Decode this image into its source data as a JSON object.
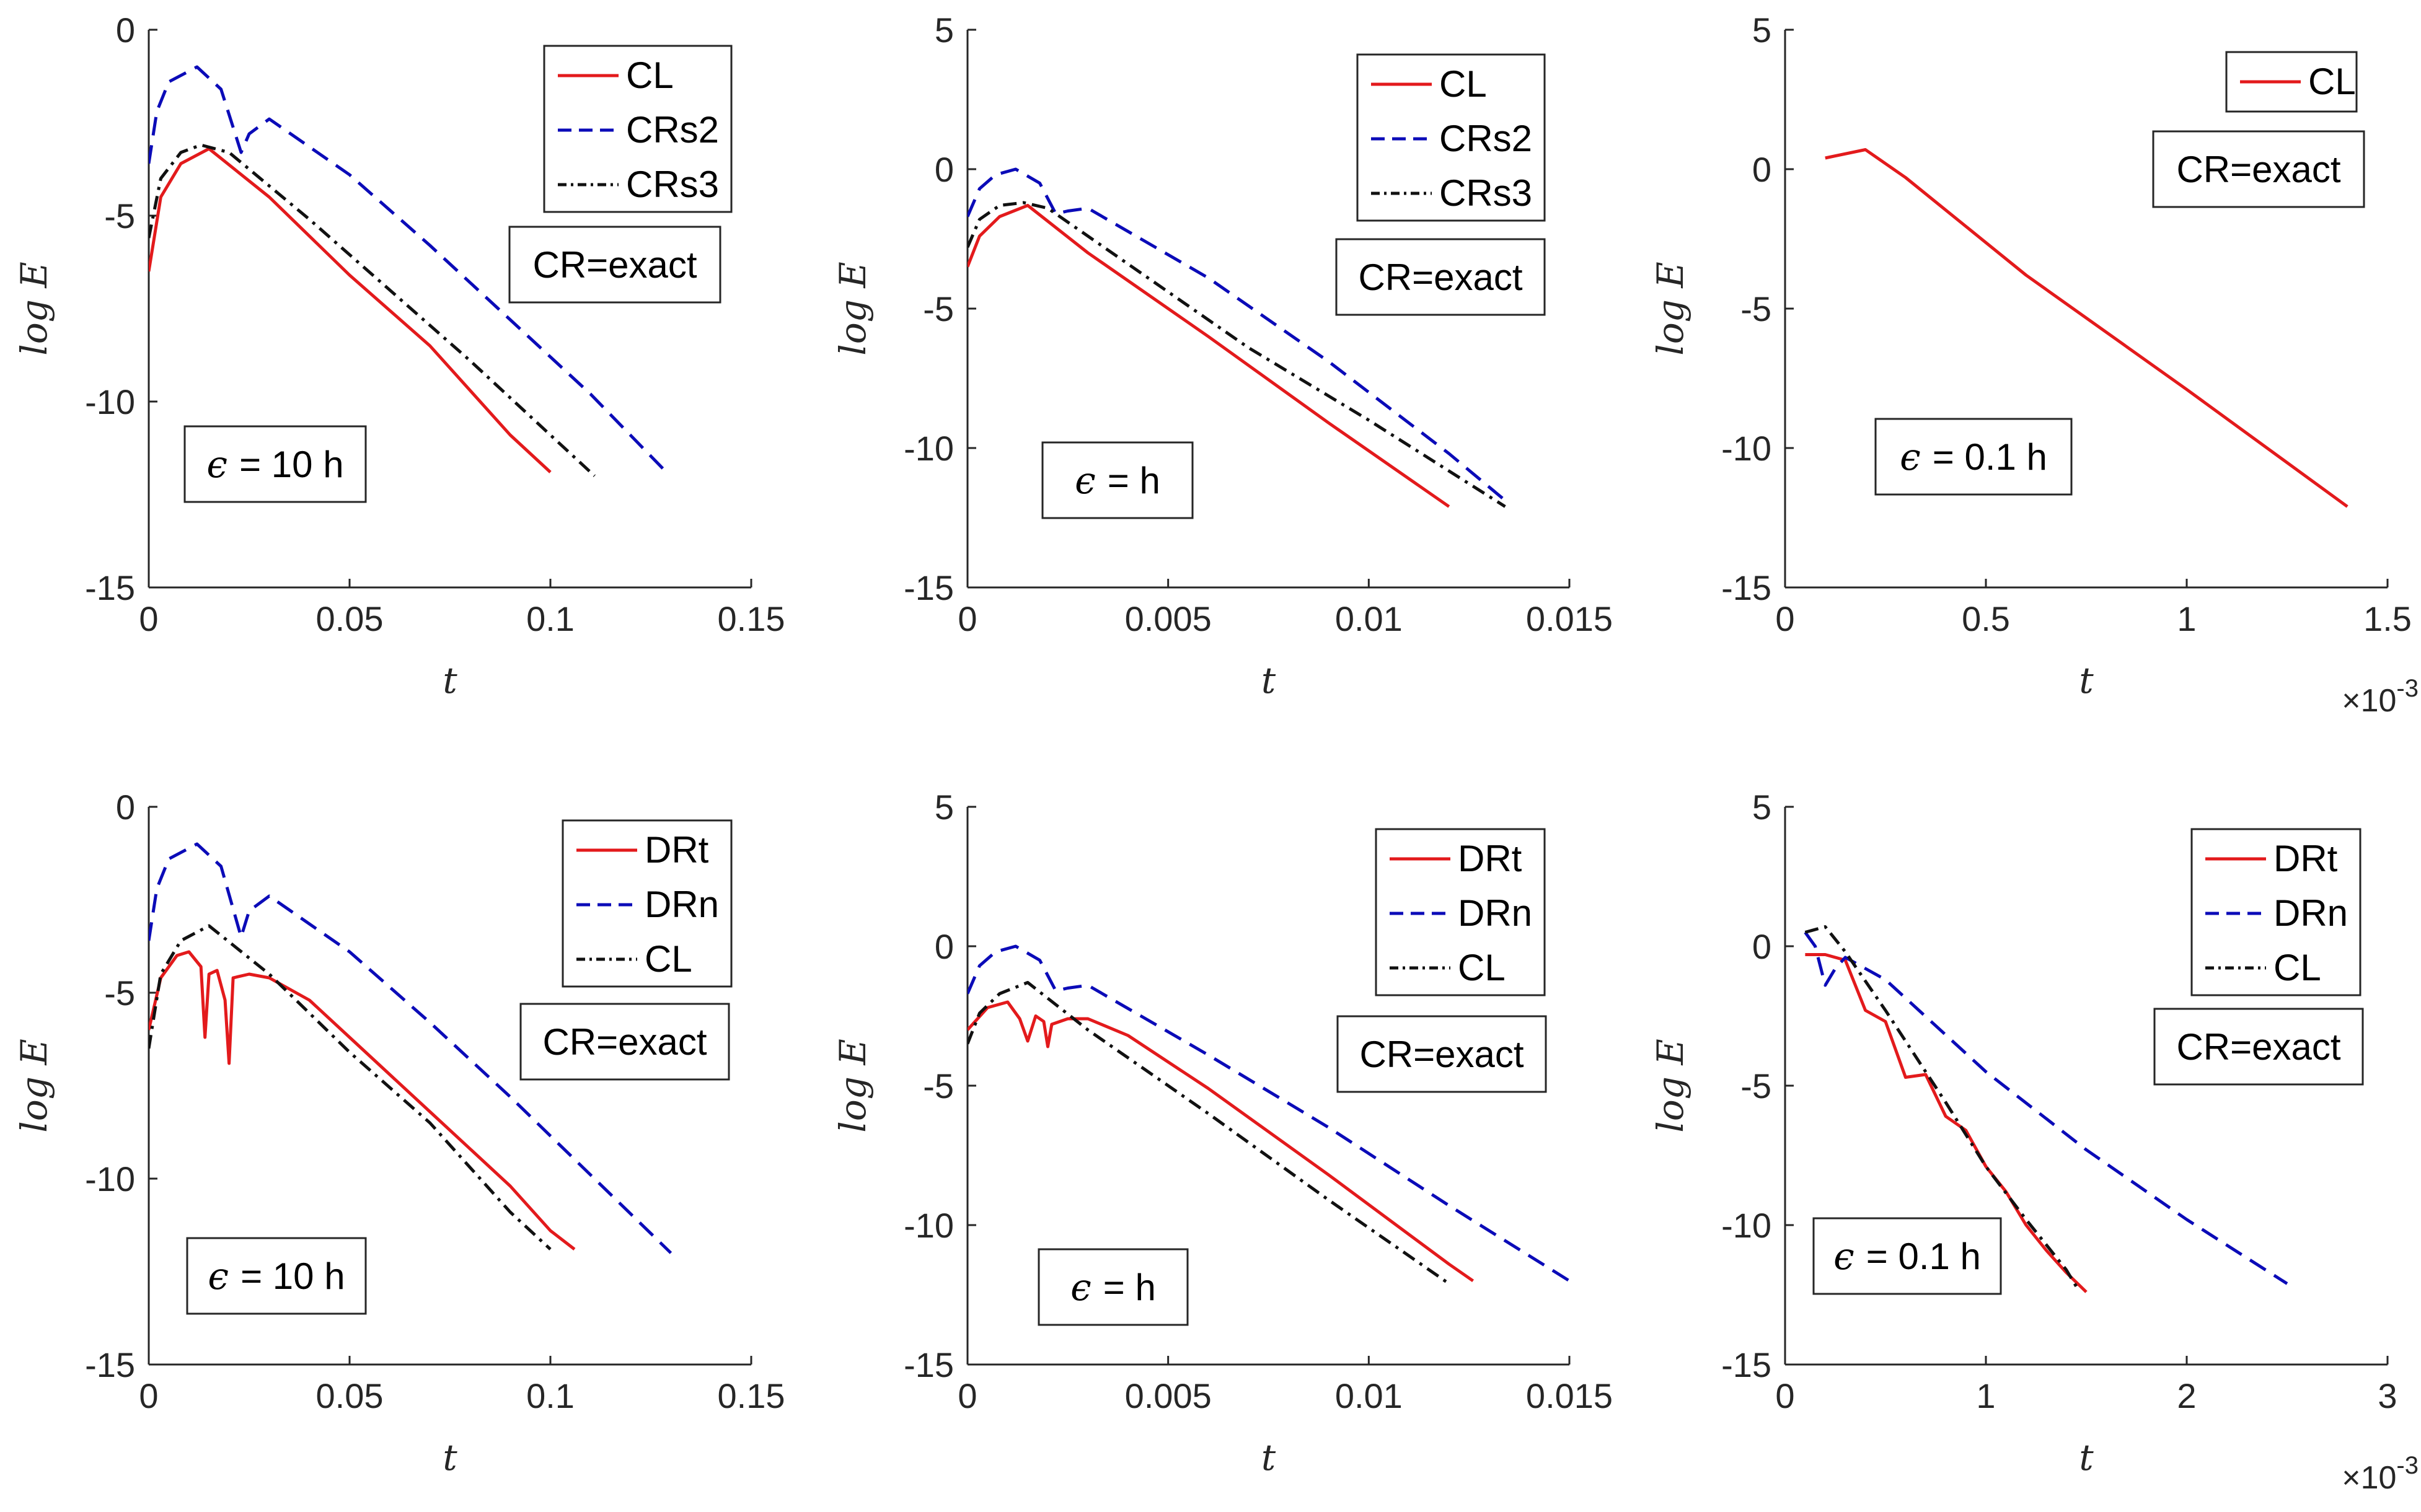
{
  "chart_data": [
    {
      "type": "line",
      "id": "p11",
      "xlim": [
        0,
        0.15
      ],
      "ylim": [
        -15,
        0
      ],
      "xticks": [
        "0",
        "0.05",
        "0.1",
        "0.15"
      ],
      "yticks": [
        "0",
        "-5",
        "-10",
        "-15"
      ],
      "xlabel": "t",
      "ylabel": "log E",
      "exponent": "",
      "legend": [
        "CL",
        "CRs2",
        "CRs3"
      ],
      "legend_position": "top-right",
      "note": "CR=exact",
      "eps_label": "= 10 h",
      "series": [
        {
          "name": "CL",
          "color": "#e31a1c",
          "style": "solid",
          "x": [
            0,
            0.003,
            0.008,
            0.015,
            0.03,
            0.05,
            0.07,
            0.09,
            0.1
          ],
          "y": [
            -6.5,
            -4.5,
            -3.6,
            -3.2,
            -4.5,
            -6.6,
            -8.5,
            -10.9,
            -11.9
          ]
        },
        {
          "name": "CRs2",
          "color": "#0b0bb8",
          "style": "dashed",
          "x": [
            0,
            0.002,
            0.005,
            0.012,
            0.018,
            0.023,
            0.025,
            0.03,
            0.05,
            0.07,
            0.09,
            0.11,
            0.128
          ],
          "y": [
            -3.6,
            -2.2,
            -1.4,
            -1.0,
            -1.6,
            -3.3,
            -2.8,
            -2.4,
            -3.9,
            -5.8,
            -7.8,
            -9.8,
            -11.8
          ]
        },
        {
          "name": "CRs3",
          "color": "#111111",
          "style": "dashdot",
          "x": [
            0,
            0.003,
            0.008,
            0.013,
            0.02,
            0.04,
            0.06,
            0.08,
            0.1,
            0.111
          ],
          "y": [
            -5.6,
            -4.0,
            -3.3,
            -3.1,
            -3.3,
            -5.1,
            -7.0,
            -8.9,
            -10.9,
            -12.0
          ]
        }
      ]
    },
    {
      "type": "line",
      "id": "p12",
      "xlim": [
        0,
        0.015
      ],
      "ylim": [
        -15,
        5
      ],
      "xticks": [
        "0",
        "0.005",
        "0.01",
        "0.015"
      ],
      "yticks": [
        "5",
        "0",
        "-5",
        "-10",
        "-15"
      ],
      "xlabel": "t",
      "ylabel": "log E",
      "exponent": "",
      "legend": [
        "CL",
        "CRs2",
        "CRs3"
      ],
      "legend_position": "top-right",
      "note": "CR=exact",
      "eps_label": "= h",
      "series": [
        {
          "name": "CL",
          "color": "#e31a1c",
          "style": "solid",
          "x": [
            0,
            0.0003,
            0.0008,
            0.0015,
            0.003,
            0.006,
            0.009,
            0.012
          ],
          "y": [
            -3.5,
            -2.4,
            -1.7,
            -1.3,
            -3.0,
            -6.0,
            -9.1,
            -12.1
          ]
        },
        {
          "name": "CRs2",
          "color": "#0b0bb8",
          "style": "dashed",
          "x": [
            0,
            0.0003,
            0.0007,
            0.0012,
            0.0018,
            0.0022,
            0.0025,
            0.003,
            0.006,
            0.009,
            0.012,
            0.0135
          ],
          "y": [
            -1.7,
            -0.7,
            -0.2,
            0.0,
            -0.5,
            -1.6,
            -1.5,
            -1.4,
            -3.9,
            -6.9,
            -10.2,
            -12.0
          ]
        },
        {
          "name": "CRs3",
          "color": "#111111",
          "style": "dashdot",
          "x": [
            0,
            0.0003,
            0.0008,
            0.0014,
            0.002,
            0.004,
            0.007,
            0.01,
            0.0134
          ],
          "y": [
            -2.8,
            -1.8,
            -1.3,
            -1.2,
            -1.4,
            -3.4,
            -6.4,
            -9.0,
            -12.1
          ]
        }
      ]
    },
    {
      "type": "line",
      "id": "p13",
      "xlim": [
        0,
        1.5
      ],
      "ylim": [
        -15,
        5
      ],
      "xticks": [
        "0",
        "0.5",
        "1",
        "1.5"
      ],
      "yticks": [
        "5",
        "0",
        "-5",
        "-10",
        "-15"
      ],
      "xlabel": "t",
      "ylabel": "log E",
      "exponent": "×10-3",
      "legend": [
        "CL"
      ],
      "legend_position": "top-right",
      "note": "CR=exact",
      "eps_label": "= 0.1 h",
      "series": [
        {
          "name": "CL",
          "color": "#e31a1c",
          "style": "solid",
          "x": [
            0.1,
            0.2,
            0.3,
            0.6,
            1.0,
            1.4
          ],
          "y": [
            0.4,
            0.7,
            -0.3,
            -3.8,
            -7.9,
            -12.1
          ]
        }
      ]
    },
    {
      "type": "line",
      "id": "p21",
      "xlim": [
        0,
        0.15
      ],
      "ylim": [
        -15,
        0
      ],
      "xticks": [
        "0",
        "0.05",
        "0.1",
        "0.15"
      ],
      "yticks": [
        "0",
        "-5",
        "-10",
        "-15"
      ],
      "xlabel": "t",
      "ylabel": "log E",
      "exponent": "",
      "legend": [
        "DRt",
        "DRn",
        "CL"
      ],
      "legend_position": "top-right",
      "note": "CR=exact",
      "eps_label": "= 10 h",
      "series": [
        {
          "name": "DRt",
          "color": "#e31a1c",
          "style": "solid",
          "x": [
            0,
            0.003,
            0.007,
            0.01,
            0.013,
            0.014,
            0.015,
            0.017,
            0.019,
            0.02,
            0.021,
            0.025,
            0.03,
            0.04,
            0.05,
            0.07,
            0.09,
            0.1,
            0.106
          ],
          "y": [
            -6.0,
            -4.6,
            -4.0,
            -3.9,
            -4.3,
            -6.2,
            -4.5,
            -4.4,
            -5.2,
            -6.9,
            -4.6,
            -4.5,
            -4.6,
            -5.2,
            -6.2,
            -8.2,
            -10.2,
            -11.4,
            -11.9
          ]
        },
        {
          "name": "DRn",
          "color": "#0b0bb8",
          "style": "dashed",
          "x": [
            0,
            0.002,
            0.005,
            0.012,
            0.018,
            0.023,
            0.025,
            0.03,
            0.05,
            0.07,
            0.09,
            0.11,
            0.13
          ],
          "y": [
            -3.6,
            -2.2,
            -1.4,
            -1.0,
            -1.6,
            -3.5,
            -2.8,
            -2.4,
            -3.9,
            -5.8,
            -7.8,
            -9.9,
            -12.0
          ]
        },
        {
          "name": "CL",
          "color": "#111111",
          "style": "dashdot",
          "x": [
            0,
            0.003,
            0.008,
            0.015,
            0.03,
            0.05,
            0.07,
            0.09,
            0.1
          ],
          "y": [
            -6.5,
            -4.5,
            -3.6,
            -3.2,
            -4.5,
            -6.6,
            -8.5,
            -10.9,
            -11.9
          ]
        }
      ]
    },
    {
      "type": "line",
      "id": "p22",
      "xlim": [
        0,
        0.015
      ],
      "ylim": [
        -15,
        5
      ],
      "xticks": [
        "0",
        "0.005",
        "0.01",
        "0.015"
      ],
      "yticks": [
        "5",
        "0",
        "-5",
        "-10",
        "-15"
      ],
      "xlabel": "t",
      "ylabel": "log E",
      "exponent": "",
      "legend": [
        "DRt",
        "DRn",
        "CL"
      ],
      "legend_position": "top-right",
      "note": "CR=exact",
      "eps_label": "= h",
      "series": [
        {
          "name": "DRt",
          "color": "#e31a1c",
          "style": "solid",
          "x": [
            0,
            0.0005,
            0.001,
            0.0013,
            0.0015,
            0.0017,
            0.0019,
            0.002,
            0.0021,
            0.0025,
            0.003,
            0.004,
            0.006,
            0.009,
            0.012,
            0.0126
          ],
          "y": [
            -3.0,
            -2.2,
            -2.0,
            -2.6,
            -3.4,
            -2.5,
            -2.7,
            -3.6,
            -2.8,
            -2.6,
            -2.6,
            -3.2,
            -5.1,
            -8.2,
            -11.4,
            -12.0
          ]
        },
        {
          "name": "DRn",
          "color": "#0b0bb8",
          "style": "dashed",
          "x": [
            0,
            0.0003,
            0.0007,
            0.0012,
            0.0018,
            0.0022,
            0.0025,
            0.003,
            0.006,
            0.009,
            0.012,
            0.015
          ],
          "y": [
            -1.7,
            -0.7,
            -0.2,
            0.0,
            -0.5,
            -1.6,
            -1.5,
            -1.4,
            -3.9,
            -6.5,
            -9.3,
            -12.0
          ]
        },
        {
          "name": "CL",
          "color": "#111111",
          "style": "dashdot",
          "x": [
            0,
            0.0003,
            0.0008,
            0.0015,
            0.003,
            0.006,
            0.009,
            0.012
          ],
          "y": [
            -3.5,
            -2.4,
            -1.7,
            -1.3,
            -3.0,
            -6.0,
            -9.1,
            -12.1
          ]
        }
      ]
    },
    {
      "type": "line",
      "id": "p23",
      "xlim": [
        0,
        3
      ],
      "ylim": [
        -15,
        5
      ],
      "xticks": [
        "0",
        "1",
        "2",
        "3"
      ],
      "yticks": [
        "5",
        "0",
        "-5",
        "-10",
        "-15"
      ],
      "xlabel": "t",
      "ylabel": "log E",
      "exponent": "×10-3",
      "legend": [
        "DRt",
        "DRn",
        "CL"
      ],
      "legend_position": "top-right",
      "note": "CR=exact",
      "eps_label": "= 0.1 h",
      "series": [
        {
          "name": "DRt",
          "color": "#e31a1c",
          "style": "solid",
          "x": [
            0.1,
            0.2,
            0.3,
            0.4,
            0.5,
            0.6,
            0.7,
            0.8,
            0.9,
            1.0,
            1.1,
            1.2,
            1.3,
            1.4,
            1.5
          ],
          "y": [
            -0.3,
            -0.3,
            -0.5,
            -2.3,
            -2.7,
            -4.7,
            -4.6,
            -6.1,
            -6.6,
            -7.9,
            -8.8,
            -10.0,
            -10.9,
            -11.7,
            -12.4
          ]
        },
        {
          "name": "DRn",
          "color": "#0b0bb8",
          "style": "dashed",
          "x": [
            0.1,
            0.15,
            0.2,
            0.25,
            0.3,
            0.5,
            1.0,
            1.5,
            2.0,
            2.5
          ],
          "y": [
            0.5,
            0.0,
            -1.4,
            -0.8,
            -0.4,
            -1.2,
            -4.5,
            -7.3,
            -9.8,
            -12.1
          ]
        },
        {
          "name": "CL",
          "color": "#111111",
          "style": "dashdot",
          "x": [
            0.1,
            0.2,
            0.3,
            0.5,
            0.8,
            1.0,
            1.2,
            1.4,
            1.45
          ],
          "y": [
            0.5,
            0.7,
            -0.2,
            -2.3,
            -5.6,
            -7.9,
            -9.8,
            -11.6,
            -12.2
          ]
        }
      ]
    }
  ]
}
